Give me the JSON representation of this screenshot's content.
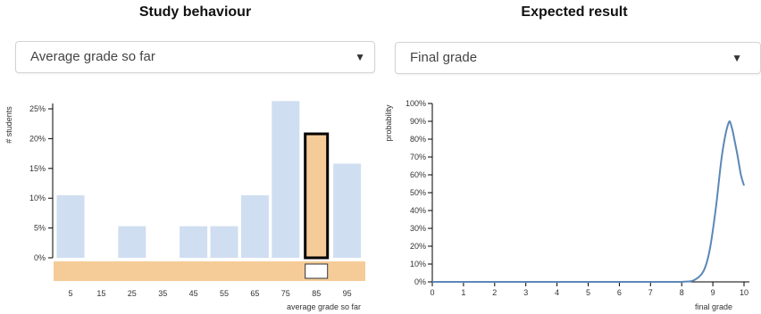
{
  "left": {
    "title": "Study behaviour",
    "dropdown": {
      "selected": "Average grade so far",
      "arrow_icon": "▼"
    },
    "chart_data": {
      "type": "bar",
      "categories": [
        "5",
        "15",
        "25",
        "35",
        "45",
        "55",
        "65",
        "75",
        "85",
        "95"
      ],
      "values": [
        10.5,
        0,
        5.3,
        0,
        5.3,
        5.3,
        10.5,
        26.3,
        21.1,
        15.8
      ],
      "selected_category": "85",
      "ylabel": "# students",
      "xlabel": "average grade so far",
      "yticks": [
        "0%",
        "5%",
        "10%",
        "15%",
        "20%",
        "25%"
      ],
      "ylim": [
        0,
        25
      ],
      "bar_color": "#cfdef0",
      "selected_color": "#f5cc98"
    }
  },
  "right": {
    "title": "Expected result",
    "dropdown": {
      "selected": "Final grade",
      "arrow_icon": "▼"
    },
    "chart_data": {
      "type": "line",
      "x": [
        0,
        1,
        2,
        3,
        4,
        5,
        6,
        7,
        7.8,
        8.1,
        8.4,
        8.7,
        8.9,
        9.1,
        9.3,
        9.5,
        9.6,
        9.7,
        9.8,
        9.9,
        10
      ],
      "y": [
        0,
        0,
        0,
        0,
        0,
        0,
        0,
        0,
        0,
        0.1,
        1,
        6,
        18,
        42,
        72,
        89,
        87,
        79,
        70,
        60,
        54
      ],
      "ylabel": "probability",
      "xlabel": "final grade",
      "xticks": [
        "0",
        "1",
        "2",
        "3",
        "4",
        "5",
        "6",
        "7",
        "8",
        "9",
        "10"
      ],
      "yticks": [
        "0%",
        "10%",
        "20%",
        "30%",
        "40%",
        "50%",
        "60%",
        "70%",
        "80%",
        "90%",
        "100%"
      ],
      "xlim": [
        0,
        10
      ],
      "ylim": [
        0,
        100
      ],
      "line_color": "#5b88b8"
    }
  }
}
